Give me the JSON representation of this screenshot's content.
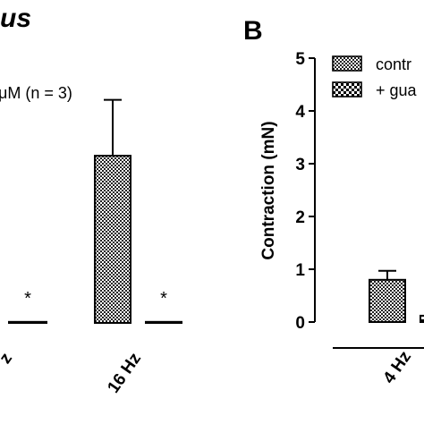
{
  "chart_data": [
    {
      "panel_title": "us",
      "type": "bar",
      "annotation": "μM (n = 3)",
      "categories": [
        "z",
        "16 Hz"
      ],
      "series": [
        {
          "name": "",
          "pattern": "checker",
          "values": [
            null,
            3.2
          ],
          "errors": [
            null,
            1.07
          ]
        },
        {
          "name": "",
          "pattern": "none",
          "values": [
            0.02,
            0.02
          ],
          "errors": [
            0,
            0
          ],
          "significance": [
            "*",
            "*"
          ]
        }
      ]
    },
    {
      "panel_title": "B",
      "type": "bar",
      "ylabel": "Contraction (mN)",
      "yticks": [
        "0",
        "1",
        "2",
        "3",
        "4",
        "5"
      ],
      "ylim": [
        0,
        5
      ],
      "categories": [
        "4 Hz"
      ],
      "series": [
        {
          "name": "contr",
          "pattern": "checker",
          "values": [
            0.8
          ],
          "errors": [
            0.17
          ]
        },
        {
          "name": "+ gua",
          "pattern": "bold-checker",
          "values": [
            0.12
          ],
          "errors": [
            0
          ]
        }
      ],
      "legend_position": "top-right"
    }
  ]
}
